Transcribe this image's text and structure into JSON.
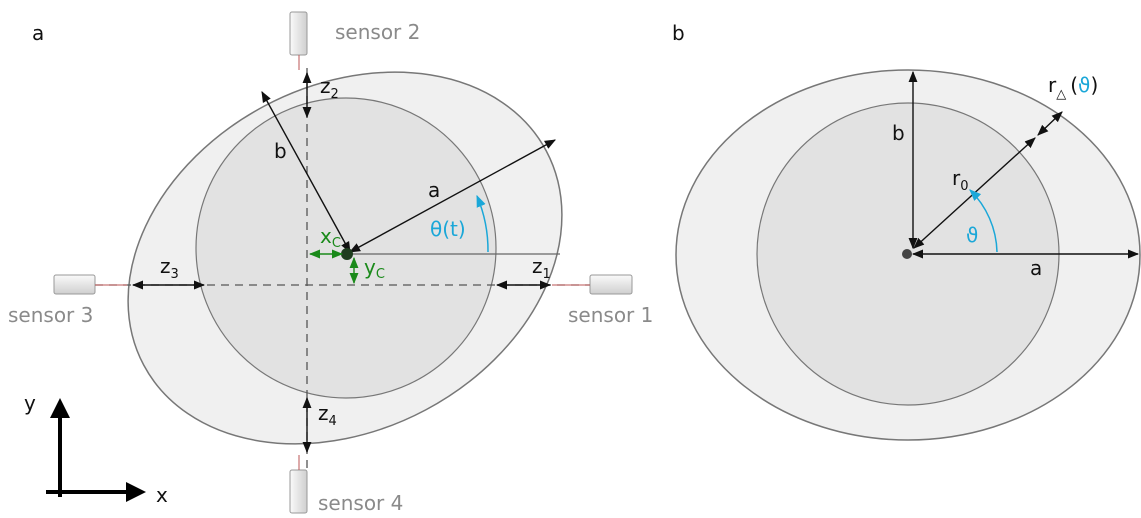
{
  "panel_a": {
    "label": "a",
    "sensors": [
      "sensor 1",
      "sensor 2",
      "sensor 3",
      "sensor 4"
    ],
    "gaps": [
      {
        "symbol": "z",
        "sub": "1"
      },
      {
        "symbol": "z",
        "sub": "2"
      },
      {
        "symbol": "z",
        "sub": "3"
      },
      {
        "symbol": "z",
        "sub": "4"
      }
    ],
    "semi_axes": [
      "a",
      "b"
    ],
    "angle": "θ(t)",
    "center_offsets": [
      {
        "symbol": "x",
        "sub": "C"
      },
      {
        "symbol": "y",
        "sub": "C"
      }
    ],
    "axes": [
      "x",
      "y"
    ]
  },
  "panel_b": {
    "label": "b",
    "semi_axes": [
      "a",
      "b"
    ],
    "base_radius": {
      "symbol": "r",
      "sub": "0"
    },
    "deviation": {
      "symbol": "r",
      "sub": "△",
      "open": "(",
      "arg": "ϑ",
      "close": ")"
    },
    "angle": "ϑ"
  }
}
